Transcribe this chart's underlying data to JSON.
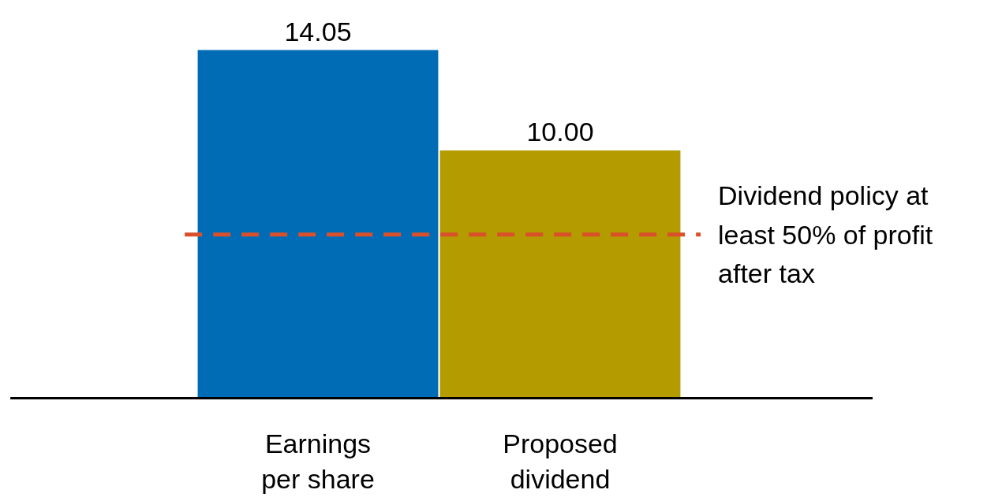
{
  "chart_data": {
    "type": "bar",
    "categories": [
      "Earnings\nper share",
      "Proposed\ndividend"
    ],
    "values": [
      14.05,
      10.0
    ],
    "colors": [
      "#006cb5",
      "#b39b00"
    ],
    "value_labels": [
      "14.05",
      "10.00"
    ],
    "ref_lines": [
      {
        "axis": "y",
        "value": 6.6,
        "label": "Dividend policy at\nleast 50% of profit\nafter tax",
        "color": "#d9502a",
        "line_style": "dashed"
      }
    ],
    "grid": false
  }
}
